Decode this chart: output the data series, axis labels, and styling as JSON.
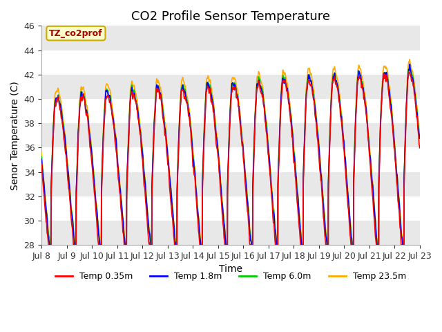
{
  "title": "CO2 Profile Sensor Temperature",
  "ylabel": "Senor Temperature (C)",
  "xlabel": "Time",
  "ylim": [
    28,
    46
  ],
  "xlim": [
    0,
    360
  ],
  "legend_label": "TZ_co2prof",
  "series_labels": [
    "Temp 0.35m",
    "Temp 1.8m",
    "Temp 6.0m",
    "Temp 23.5m"
  ],
  "series_colors": [
    "#ff0000",
    "#0000ff",
    "#00cc00",
    "#ffaa00"
  ],
  "series_linewidths": [
    1.2,
    1.2,
    1.2,
    1.2
  ],
  "xtick_labels": [
    "Jul 8",
    "Jul 9",
    "Jul 10",
    "Jul 11",
    "Jul 12",
    "Jul 13",
    "Jul 14",
    "Jul 15",
    "Jul 16",
    "Jul 17",
    "Jul 18",
    "Jul 19",
    "Jul 20",
    "Jul 21",
    "Jul 22",
    "Jul 23"
  ],
  "xtick_positions": [
    0,
    24,
    48,
    72,
    96,
    120,
    144,
    168,
    192,
    216,
    240,
    264,
    288,
    312,
    336,
    360
  ],
  "ytick_positions": [
    28,
    30,
    32,
    34,
    36,
    38,
    40,
    42,
    44,
    46
  ],
  "band_color": "#e8e8e8",
  "background_color": "#ffffff",
  "title_fontsize": 13,
  "axis_label_fontsize": 10,
  "tick_fontsize": 9
}
